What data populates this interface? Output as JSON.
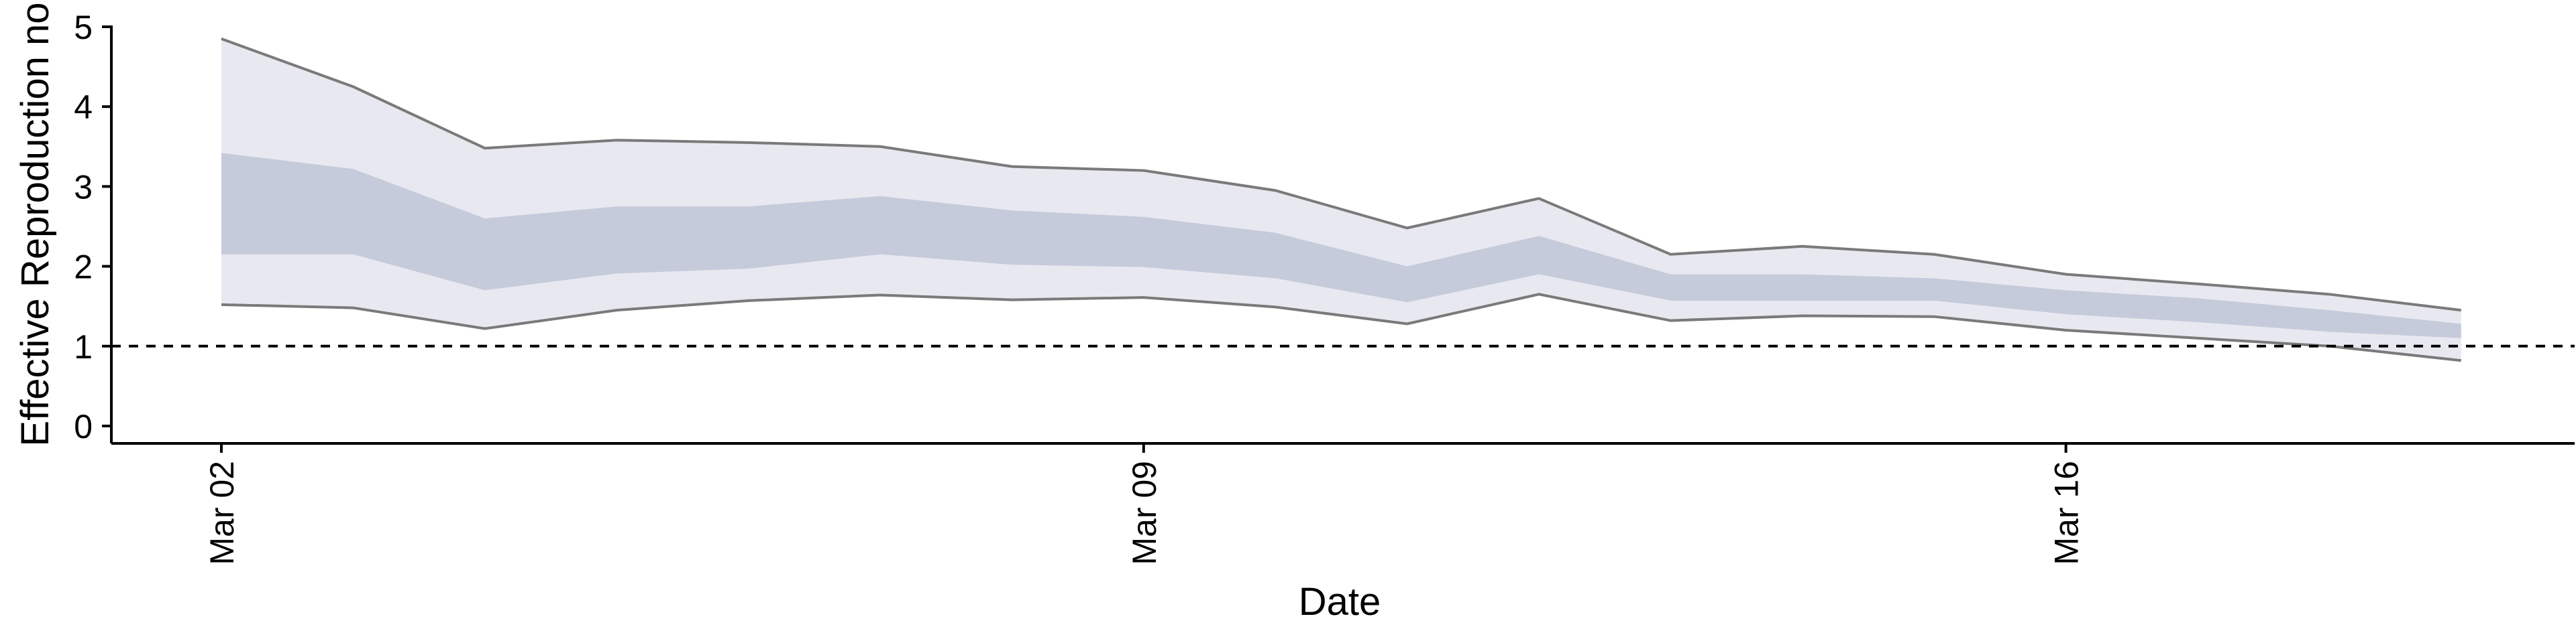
{
  "chart_data": {
    "type": "area",
    "title": "",
    "xlabel": "Date",
    "ylabel": "Effective Reproduction no",
    "x": [
      "2020-03-02",
      "2020-03-03",
      "2020-03-04",
      "2020-03-05",
      "2020-03-06",
      "2020-03-07",
      "2020-03-08",
      "2020-03-09",
      "2020-03-10",
      "2020-03-11",
      "2020-03-12",
      "2020-03-13",
      "2020-03-14",
      "2020-03-15",
      "2020-03-16",
      "2020-03-17",
      "2020-03-18",
      "2020-03-19"
    ],
    "x_ticks": [
      {
        "date": "2020-03-02",
        "label": "Mar 02"
      },
      {
        "date": "2020-03-09",
        "label": "Mar 09"
      },
      {
        "date": "2020-03-16",
        "label": "Mar 16"
      }
    ],
    "ylim": [
      0,
      5
    ],
    "y_ticks": [
      0,
      1,
      2,
      3,
      4,
      5
    ],
    "reference_line": {
      "y": 1,
      "style": "dashed"
    },
    "series": [
      {
        "upper": [
          4.85,
          4.25,
          3.48,
          3.58,
          3.55,
          3.5,
          3.25,
          3.2,
          2.95,
          2.48,
          2.85,
          2.15,
          2.25,
          2.15,
          1.9,
          1.78,
          1.65,
          1.45
        ],
        "lower": [
          1.52,
          1.48,
          1.22,
          1.45,
          1.57,
          1.64,
          1.58,
          1.61,
          1.49,
          1.28,
          1.65,
          1.32,
          1.38,
          1.37,
          1.2,
          1.1,
          1.0,
          0.82
        ]
      },
      {
        "upper": [
          3.42,
          3.22,
          2.6,
          2.75,
          2.75,
          2.88,
          2.7,
          2.62,
          2.42,
          2.0,
          2.38,
          1.9,
          1.9,
          1.85,
          1.7,
          1.6,
          1.45,
          1.28
        ],
        "lower": [
          2.15,
          2.15,
          1.7,
          1.91,
          1.97,
          2.15,
          2.02,
          1.99,
          1.85,
          1.55,
          1.9,
          1.57,
          1.57,
          1.57,
          1.4,
          1.3,
          1.18,
          1.1
        ]
      }
    ],
    "colors": {
      "outer_band": "#e8e9f0",
      "inner_band": "#c6cbdb",
      "bound_line": "#7a7a7a",
      "reference_line": "#000000",
      "axis": "#000000"
    },
    "grid": false,
    "legend": "none"
  }
}
